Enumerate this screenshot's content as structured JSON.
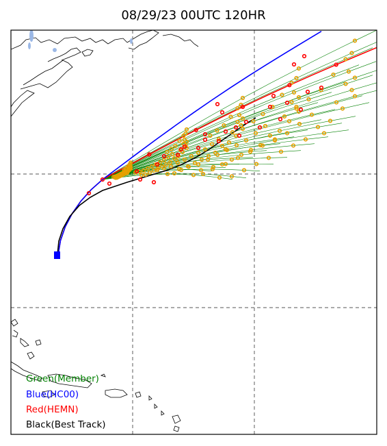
{
  "title": "08/29/23 00UTC 120HR",
  "legend": {
    "green": "Green(Member)",
    "blue": "Blue(HC00)",
    "red": "Red(HEMN)",
    "black": "Black(Best Track)"
  },
  "colors": {
    "member": "#008000",
    "hc00": "#0000ff",
    "hemn": "#ff0000",
    "best_track": "#000000",
    "marker": "#e6a000",
    "water": "#9bb8e6",
    "grid": "#777777"
  }
}
